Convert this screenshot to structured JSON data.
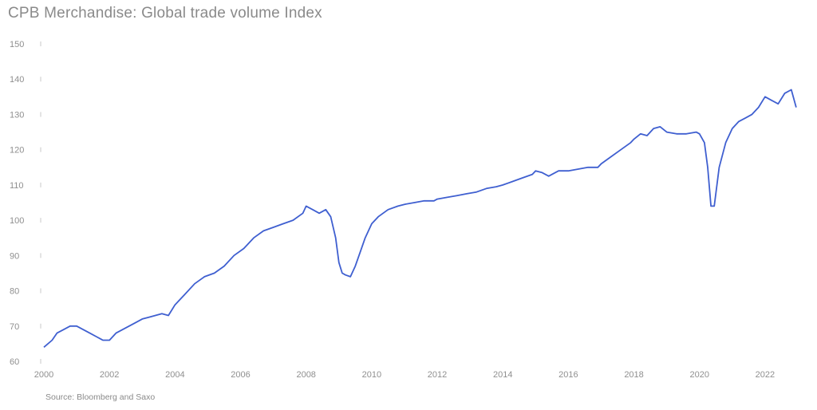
{
  "title": "CPB Merchandise: Global trade volume Index",
  "source": "Source: Bloomberg and Saxo",
  "chart_data": {
    "type": "line",
    "title": "CPB Merchandise: Global trade volume Index",
    "xlabel": "",
    "ylabel": "",
    "xlim": [
      2000,
      2023
    ],
    "ylim": [
      60,
      150
    ],
    "x_ticks": [
      "2000",
      "2002",
      "2004",
      "2006",
      "2008",
      "2010",
      "2012",
      "2014",
      "2016",
      "2018",
      "2020",
      "2022"
    ],
    "y_ticks": [
      "60",
      "70",
      "80",
      "90",
      "100",
      "110",
      "120",
      "130",
      "140",
      "150"
    ],
    "grid": false,
    "line_color": "#3f5fd0",
    "series": [
      {
        "x": [
          2000.0,
          2000.25,
          2000.4,
          2000.6,
          2000.8,
          2001.0,
          2001.2,
          2001.4,
          2001.6,
          2001.8,
          2002.0,
          2002.2,
          2002.4,
          2002.6,
          2002.8,
          2003.0,
          2003.2,
          2003.4,
          2003.6,
          2003.8,
          2004.0,
          2004.3,
          2004.6,
          2004.9,
          2005.2,
          2005.5,
          2005.8,
          2006.1,
          2006.4,
          2006.7,
          2007.0,
          2007.3,
          2007.6,
          2007.9,
          2008.0,
          2008.2,
          2008.4,
          2008.6,
          2008.75,
          2008.9,
          2009.0,
          2009.1,
          2009.2,
          2009.35,
          2009.5,
          2009.65,
          2009.8,
          2010.0,
          2010.2,
          2010.5,
          2010.8,
          2011.0,
          2011.3,
          2011.6,
          2011.9,
          2012.0,
          2012.3,
          2012.6,
          2012.9,
          2013.2,
          2013.5,
          2013.8,
          2014.0,
          2014.3,
          2014.6,
          2014.9,
          2015.0,
          2015.2,
          2015.4,
          2015.7,
          2016.0,
          2016.3,
          2016.6,
          2016.9,
          2017.0,
          2017.3,
          2017.6,
          2017.9,
          2018.0,
          2018.2,
          2018.4,
          2018.6,
          2018.8,
          2019.0,
          2019.3,
          2019.6,
          2019.9,
          2020.0,
          2020.15,
          2020.25,
          2020.35,
          2020.45,
          2020.6,
          2020.8,
          2021.0,
          2021.2,
          2021.4,
          2021.6,
          2021.8,
          2022.0,
          2022.2,
          2022.4,
          2022.6,
          2022.8,
          2022.95
        ],
        "y": [
          64,
          66,
          68,
          69,
          70,
          70,
          69,
          68,
          67,
          66,
          66,
          68,
          69,
          70,
          71,
          72,
          72.5,
          73,
          73.5,
          73,
          76,
          79,
          82,
          84,
          85,
          87,
          90,
          92,
          95,
          97,
          98,
          99,
          100,
          102,
          104,
          103,
          102,
          103,
          101,
          95,
          88,
          85,
          84.5,
          84,
          87,
          91,
          95,
          99,
          101,
          103,
          104,
          104.5,
          105,
          105.5,
          105.5,
          106,
          106.5,
          107,
          107.5,
          108,
          109,
          109.5,
          110,
          111,
          112,
          113,
          114,
          113.5,
          112.5,
          114,
          114,
          114.5,
          115,
          115,
          116,
          118,
          120,
          122,
          123,
          124.5,
          124,
          126,
          126.5,
          125,
          124.5,
          124.5,
          125,
          124.5,
          122,
          115,
          104,
          104,
          115,
          122,
          126,
          128,
          129,
          130,
          132,
          135,
          134,
          133,
          136,
          137,
          132
        ]
      }
    ]
  }
}
